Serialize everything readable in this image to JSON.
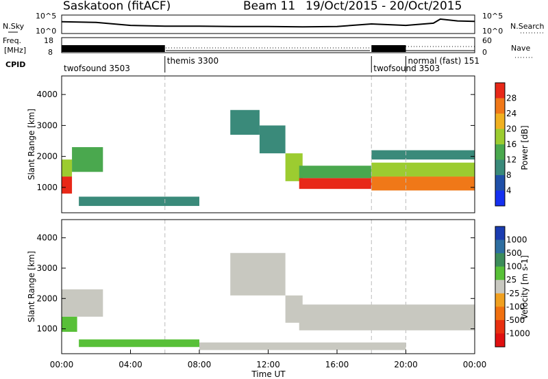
{
  "header": {
    "station": "Saskatoon (fitACF)",
    "beam": "Beam 11",
    "date_range": "19/Oct/2015 - 20/Oct/2015"
  },
  "left_labels": {
    "nsky": "N.Sky",
    "freq_line1": "Freq.",
    "freq_line2": "[MHz]",
    "cpid": "CPID"
  },
  "right_labels": {
    "nsearch": "N.Search",
    "nave": "Nave"
  },
  "noise_panel": {
    "y_ticks": [
      "10^5",
      "10^0"
    ],
    "right_ticks": [
      "10^5",
      "10^0"
    ]
  },
  "freq_panel": {
    "y_ticks": [
      "18",
      "8"
    ],
    "right_ticks": [
      "60",
      "0"
    ]
  },
  "cpid_segments": [
    {
      "label": "twofsound 3503",
      "start_hour": 0
    },
    {
      "label": "themis 3300",
      "start_hour": 6
    },
    {
      "label": "twofsound 3503",
      "start_hour": 18
    },
    {
      "label": "normal (fast) 151",
      "start_hour": 20
    }
  ],
  "x_axis": {
    "label": "Time UT",
    "ticks": [
      "00:00",
      "04:00",
      "08:00",
      "12:00",
      "16:00",
      "20:00",
      "00:00"
    ]
  },
  "power_panel": {
    "ylabel": "Slant Range [km]",
    "y_ticks": [
      "1000",
      "2000",
      "3000",
      "4000"
    ],
    "cbar_label": "Power [dB]",
    "cbar_ticks": [
      "4",
      "8",
      "12",
      "16",
      "20",
      "24",
      "28"
    ],
    "cbar_colors": [
      "#1530f0",
      "#2050a8",
      "#3a8a7a",
      "#4aa84e",
      "#9ccc30",
      "#f0b020",
      "#f07818",
      "#e82818"
    ]
  },
  "velocity_panel": {
    "ylabel": "Slant Range [km]",
    "y_ticks": [
      "1000",
      "2000",
      "3000",
      "4000"
    ],
    "cbar_label": "Velocity [m s-1]",
    "cbar_ticks": [
      "1000",
      "500",
      "100",
      "25",
      "-25",
      "-100",
      "-500",
      "-1000"
    ],
    "cbar_colors": [
      "#1a3cb0",
      "#2e6ea0",
      "#3c8c5a",
      "#58c038",
      "#c8c8c0",
      "#f0a020",
      "#f07010",
      "#e83010",
      "#e01010"
    ]
  },
  "chart_data": {
    "type": "heatmap",
    "title": "Saskatoon (fitACF) Beam 11 19/Oct/2015 - 20/Oct/2015",
    "xlabel": "Time UT",
    "ylabel": "Slant Range [km]",
    "xlim": [
      0,
      24
    ],
    "ylim": [
      180,
      4600
    ],
    "x_unit": "hours UT",
    "series": [
      {
        "name": "Power [dB]",
        "clim": [
          0,
          32
        ],
        "regions": [
          {
            "t_start": 0.0,
            "t_end": 0.6,
            "r_start": 800,
            "r_end": 1350,
            "value": 28
          },
          {
            "t_start": 0.0,
            "t_end": 0.6,
            "r_start": 1350,
            "r_end": 1900,
            "value": 18
          },
          {
            "t_start": 0.6,
            "t_end": 2.4,
            "r_start": 1500,
            "r_end": 2300,
            "value": 12
          },
          {
            "t_start": 1.0,
            "t_end": 8.0,
            "r_start": 400,
            "r_end": 700,
            "value": 8
          },
          {
            "t_start": 9.8,
            "t_end": 11.5,
            "r_start": 2700,
            "r_end": 3500,
            "value": 8
          },
          {
            "t_start": 11.5,
            "t_end": 13.0,
            "r_start": 2100,
            "r_end": 3000,
            "value": 10
          },
          {
            "t_start": 13.0,
            "t_end": 14.0,
            "r_start": 1200,
            "r_end": 2100,
            "value": 16
          },
          {
            "t_start": 13.8,
            "t_end": 18.0,
            "r_start": 950,
            "r_end": 1300,
            "value": 28
          },
          {
            "t_start": 13.8,
            "t_end": 18.0,
            "r_start": 1300,
            "r_end": 1700,
            "value": 14
          },
          {
            "t_start": 18.0,
            "t_end": 24.0,
            "r_start": 900,
            "r_end": 1350,
            "value": 26
          },
          {
            "t_start": 18.0,
            "t_end": 24.0,
            "r_start": 1350,
            "r_end": 1800,
            "value": 16
          },
          {
            "t_start": 18.0,
            "t_end": 24.0,
            "r_start": 1900,
            "r_end": 2200,
            "value": 8
          }
        ]
      },
      {
        "name": "Velocity [m s-1]",
        "clim": [
          -1000,
          1000
        ],
        "regions": [
          {
            "t_start": 0.0,
            "t_end": 0.9,
            "r_start": 900,
            "r_end": 1400,
            "value": 120
          },
          {
            "t_start": 0.0,
            "t_end": 2.4,
            "r_start": 1400,
            "r_end": 2300,
            "value": 0
          },
          {
            "t_start": 1.0,
            "t_end": 8.0,
            "r_start": 400,
            "r_end": 650,
            "value": 120
          },
          {
            "t_start": 9.8,
            "t_end": 13.0,
            "r_start": 2100,
            "r_end": 3500,
            "value": 0
          },
          {
            "t_start": 13.0,
            "t_end": 14.0,
            "r_start": 1200,
            "r_end": 2100,
            "value": 60
          },
          {
            "t_start": 13.8,
            "t_end": 24.0,
            "r_start": 950,
            "r_end": 1800,
            "value": 0
          },
          {
            "t_start": 8.0,
            "t_end": 20.0,
            "r_start": 300,
            "r_end": 550,
            "value": -60
          }
        ]
      }
    ],
    "noise_sky_trace": [
      [
        0,
        3.2
      ],
      [
        2,
        3.0
      ],
      [
        4,
        2.2
      ],
      [
        6,
        2.0
      ],
      [
        8,
        2.0
      ],
      [
        10,
        1.9
      ],
      [
        12,
        1.9
      ],
      [
        14,
        1.8
      ],
      [
        16,
        1.9
      ],
      [
        18,
        2.6
      ],
      [
        20,
        2.2
      ],
      [
        21.6,
        2.8
      ],
      [
        22,
        3.9
      ],
      [
        23,
        3.4
      ],
      [
        24,
        3.3
      ]
    ]
  }
}
